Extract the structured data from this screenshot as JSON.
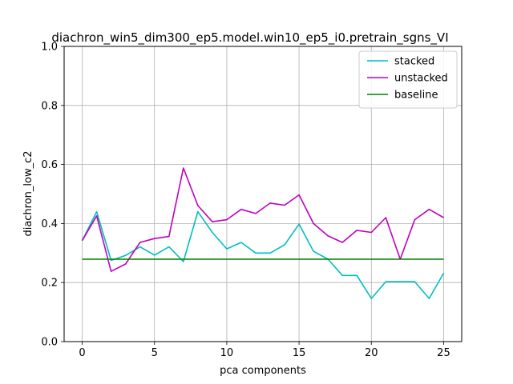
{
  "chart_data": {
    "type": "line",
    "title": "diachron_win5_dim300_ep5.model.win10_ep5_i0.pretrain_sgns_VI",
    "xlabel": "pca components",
    "ylabel": "diachron_low_c2",
    "xlim": [
      -1.25,
      26.25
    ],
    "ylim": [
      0.0,
      1.0
    ],
    "xticks": [
      0,
      5,
      10,
      15,
      20,
      25
    ],
    "yticks": [
      0.0,
      0.2,
      0.4,
      0.6,
      0.8,
      1.0
    ],
    "ytick_labels": [
      "0.0",
      "0.2",
      "0.4",
      "0.6",
      "0.8",
      "1.0"
    ],
    "grid": true,
    "legend_position": "upper-right",
    "x": [
      0,
      1,
      2,
      3,
      4,
      5,
      6,
      7,
      8,
      9,
      10,
      11,
      12,
      13,
      14,
      15,
      16,
      17,
      18,
      19,
      20,
      21,
      22,
      23,
      24,
      25
    ],
    "series": [
      {
        "name": "stacked",
        "color": "#00bfbf",
        "values": [
          0.342,
          0.44,
          0.275,
          0.292,
          0.321,
          0.293,
          0.321,
          0.271,
          0.44,
          0.37,
          0.314,
          0.336,
          0.3,
          0.3,
          0.328,
          0.398,
          0.306,
          0.279,
          0.224,
          0.224,
          0.146,
          0.203,
          0.203,
          0.203,
          0.146,
          0.232
        ]
      },
      {
        "name": "unstacked",
        "color": "#bf00bf",
        "values": [
          0.342,
          0.426,
          0.238,
          0.263,
          0.336,
          0.349,
          0.356,
          0.588,
          0.461,
          0.406,
          0.413,
          0.448,
          0.434,
          0.469,
          0.462,
          0.497,
          0.4,
          0.358,
          0.336,
          0.377,
          0.37,
          0.42,
          0.279,
          0.413,
          0.448,
          0.42
        ]
      },
      {
        "name": "baseline",
        "color": "#008000",
        "values": [
          0.279,
          0.279,
          0.279,
          0.279,
          0.279,
          0.279,
          0.279,
          0.279,
          0.279,
          0.279,
          0.279,
          0.279,
          0.279,
          0.279,
          0.279,
          0.279,
          0.279,
          0.279,
          0.279,
          0.279,
          0.279,
          0.279,
          0.279,
          0.279,
          0.279,
          0.279
        ]
      }
    ]
  }
}
